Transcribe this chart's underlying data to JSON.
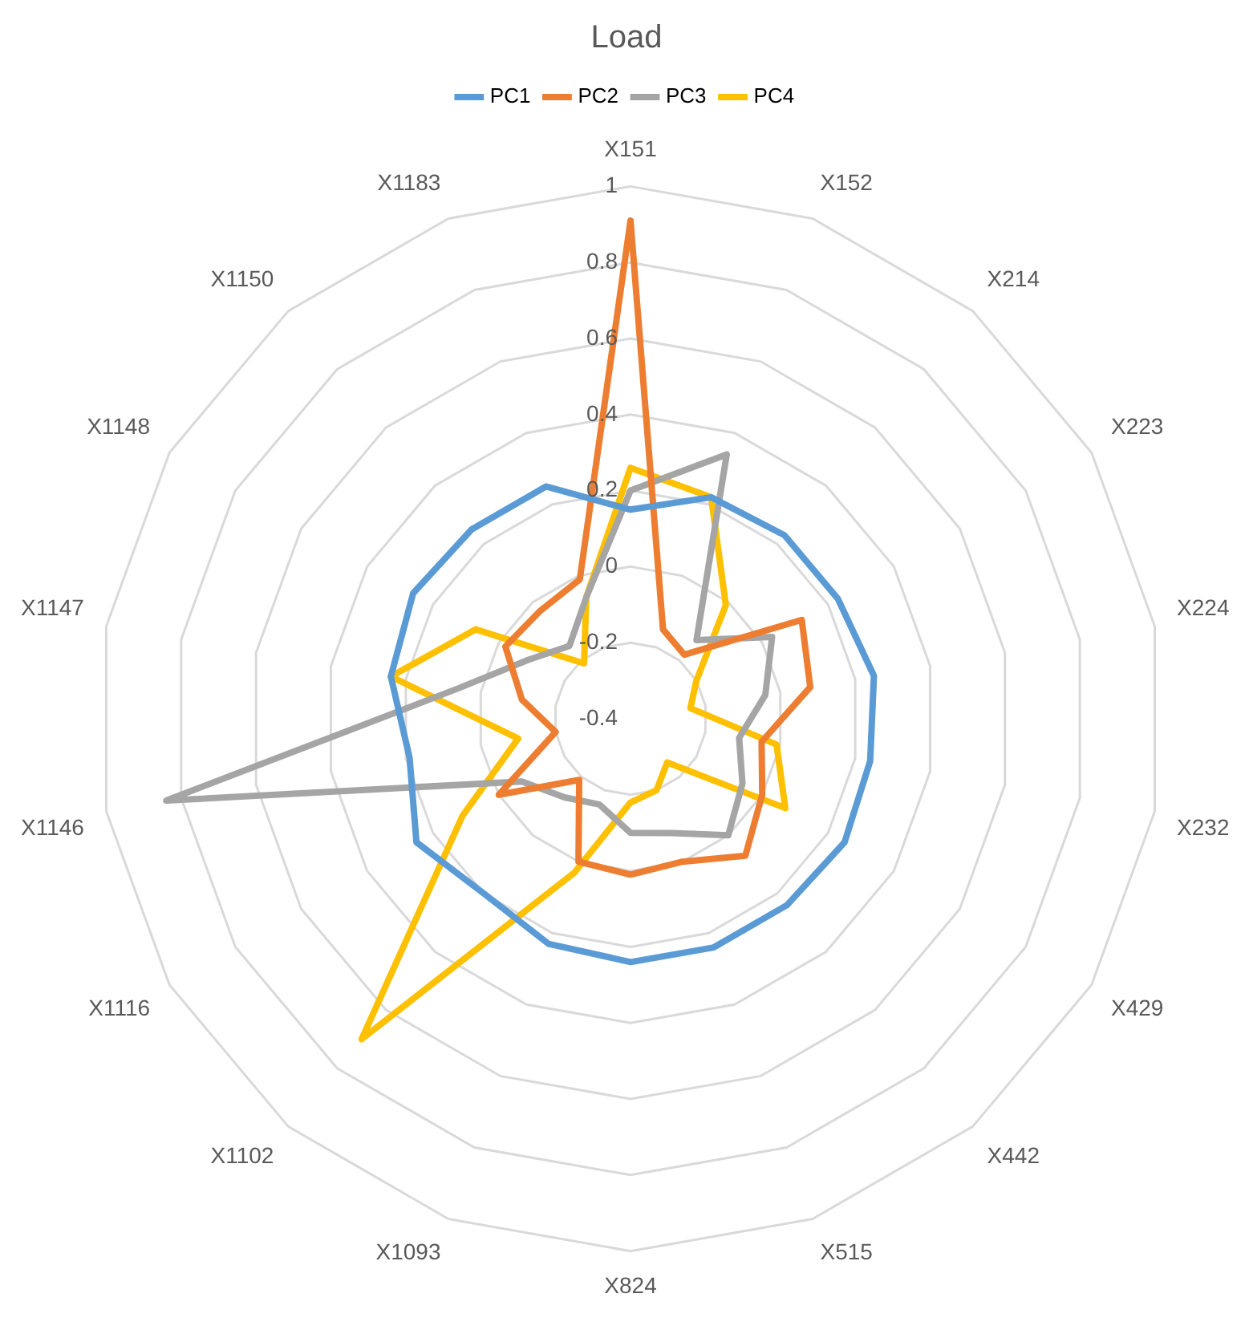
{
  "chart_data": {
    "type": "radar",
    "title": "Load",
    "categories": [
      "X151",
      "X152",
      "X214",
      "X223",
      "X224",
      "X232",
      "X429",
      "X442",
      "X515",
      "X824",
      "X1093",
      "X1102",
      "X1116",
      "X1146",
      "X1147",
      "X1148",
      "X1150",
      "X1183"
    ],
    "series": [
      {
        "name": "PC1",
        "color": "#5b9bd5",
        "values": [
          0.15,
          0.22,
          0.23,
          0.23,
          0.25,
          0.24,
          0.25,
          0.24,
          0.24,
          0.24,
          0.23,
          0.2,
          0.25,
          0.19,
          0.24,
          0.26,
          0.25,
          0.25
        ]
      },
      {
        "name": "PC2",
        "color": "#ed7d31",
        "values": [
          0.91,
          -0.15,
          -0.18,
          0.12,
          0.08,
          -0.05,
          0.0,
          0.07,
          0.0,
          0.01,
          0.0,
          -0.19,
          0.0,
          -0.2,
          -0.11,
          -0.02,
          -0.03,
          -0.01
        ]
      },
      {
        "name": "PC3",
        "color": "#a5a5a5",
        "values": [
          0.2,
          0.34,
          -0.13,
          0.03,
          -0.04,
          -0.11,
          -0.06,
          0.0,
          -0.08,
          -0.1,
          -0.16,
          -0.13,
          -0.07,
          0.84,
          0.06,
          -0.09,
          -0.15,
          -0.06
        ]
      },
      {
        "name": "PC4",
        "color": "#ffc000",
        "values": [
          0.26,
          0.22,
          -0.01,
          -0.2,
          -0.24,
          -0.01,
          0.07,
          -0.25,
          -0.2,
          -0.18,
          0.03,
          0.7,
          0.11,
          -0.1,
          0.24,
          0.07,
          -0.21,
          -0.06
        ]
      }
    ],
    "ylim": [
      -0.4,
      1
    ],
    "yticks": [
      -0.4,
      -0.2,
      0,
      0.2,
      0.4,
      0.6,
      0.8,
      1
    ],
    "grid": true,
    "legend": "top",
    "marker": "none"
  }
}
